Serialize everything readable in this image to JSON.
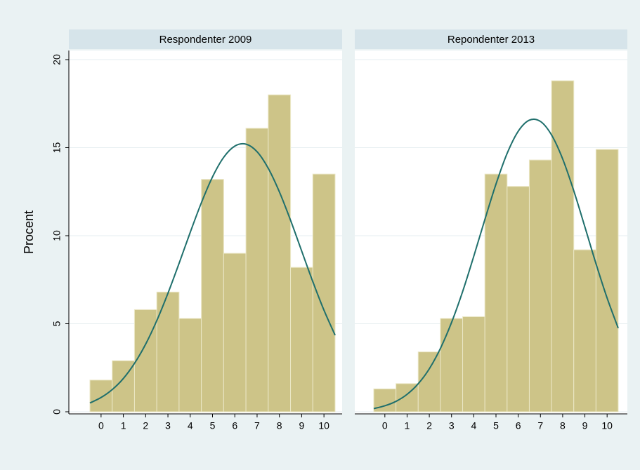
{
  "chart_data": [
    {
      "type": "histogram",
      "title": "Respondenter 2009",
      "ylabel": "Procent",
      "bins": [
        -0.5,
        0.5,
        1.5,
        2.5,
        3.5,
        4.5,
        5.5,
        6.5,
        7.5,
        8.5,
        9.5,
        10.5
      ],
      "values": [
        1.8,
        2.9,
        5.8,
        6.8,
        5.3,
        13.2,
        9.0,
        16.1,
        18.0,
        8.2,
        13.5
      ],
      "color": "#cdc488",
      "curve": {
        "color": "#1f6f6c",
        "x": [
          -0.5,
          0,
          0.5,
          1,
          1.5,
          2,
          2.5,
          3,
          3.5,
          4,
          4.5,
          5,
          5.5,
          6,
          6.5,
          7,
          7.5,
          8,
          8.5,
          9,
          9.5,
          10,
          10.5
        ],
        "values": [
          0.5,
          0.81,
          1.26,
          1.89,
          2.75,
          3.84,
          5.18,
          6.73,
          8.43,
          10.19,
          11.87,
          13.34,
          14.45,
          15.09,
          15.2,
          14.77,
          13.83,
          12.49,
          10.88,
          9.13,
          7.39,
          5.77,
          4.35
        ]
      },
      "xlim": [
        -0.5,
        10.5
      ],
      "xticks": [
        0,
        1,
        2,
        3,
        4,
        5,
        6,
        7,
        8,
        9,
        10
      ],
      "ylim": [
        0,
        20
      ],
      "yticks": [
        0,
        5,
        10,
        15,
        20
      ],
      "grid": true
    },
    {
      "type": "histogram",
      "title": "Repondenter 2013",
      "bins": [
        -0.5,
        0.5,
        1.5,
        2.5,
        3.5,
        4.5,
        5.5,
        6.5,
        7.5,
        8.5,
        9.5,
        10.5
      ],
      "values": [
        1.3,
        1.6,
        3.4,
        5.3,
        5.4,
        13.5,
        12.8,
        14.3,
        18.8,
        9.2,
        14.9
      ],
      "color": "#cdc488",
      "curve": {
        "color": "#1f6f6c",
        "x": [
          -0.5,
          0,
          0.5,
          1,
          1.5,
          2,
          2.5,
          3,
          3.5,
          4,
          4.5,
          5,
          5.5,
          6,
          6.5,
          7,
          7.5,
          8,
          8.5,
          9,
          9.5,
          10,
          10.5
        ],
        "values": [
          0.18,
          0.34,
          0.59,
          0.99,
          1.59,
          2.44,
          3.6,
          5.07,
          6.83,
          8.83,
          10.92,
          12.93,
          14.67,
          15.93,
          16.56,
          16.49,
          15.72,
          14.36,
          12.55,
          10.5,
          8.41,
          6.46,
          4.75
        ]
      },
      "xlim": [
        -0.5,
        10.5
      ],
      "xticks": [
        0,
        1,
        2,
        3,
        4,
        5,
        6,
        7,
        8,
        9,
        10
      ],
      "ylim": [
        0,
        20
      ],
      "yticks": [
        0,
        5,
        10,
        15,
        20
      ],
      "grid": true
    }
  ]
}
